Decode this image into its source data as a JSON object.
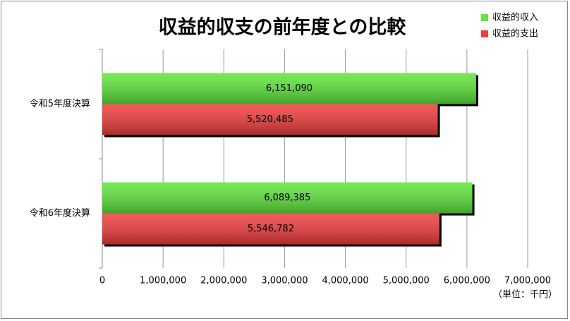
{
  "chart_data": {
    "type": "hbar",
    "title": "収益的収支の前年度との比較",
    "categories": [
      "令和5年度決算",
      "令和6年度決算"
    ],
    "series": [
      {
        "name": "収益的収入",
        "color": "#5ee63c",
        "values": [
          6151090,
          6089385
        ],
        "value_labels": [
          "6,151,090",
          "6,089,385"
        ]
      },
      {
        "name": "収益的支出",
        "color": "#f23c3c",
        "values": [
          5520485,
          5546782
        ],
        "value_labels": [
          "5,520,485",
          "5,546,782"
        ]
      }
    ],
    "xlim": [
      0,
      7000000
    ],
    "xticks": [
      0,
      {
        "value": 1000000,
        "label": "1,000,000"
      },
      {
        "value": 2000000,
        "label": "2,000,000"
      },
      {
        "value": 3000000,
        "label": "3,000,000"
      },
      {
        "value": 4000000,
        "label": "4,000,000"
      },
      {
        "value": 5000000,
        "label": "5,000,000"
      },
      {
        "value": 6000000,
        "label": "6,000,000"
      },
      {
        "value": 7000000,
        "label": "7,000,000"
      }
    ],
    "unit_note": "（単位：千円）",
    "grid": true,
    "legend": "top-right"
  }
}
